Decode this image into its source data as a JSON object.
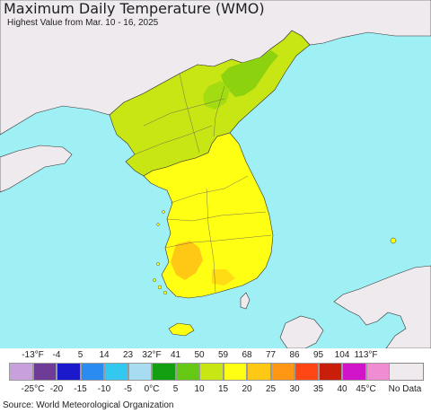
{
  "header": {
    "title": "Maximum Daily Temperature (WMO)",
    "subtitle": "Highest Value from Mar. 10 - 16, 2025"
  },
  "legend": {
    "fahrenheit_labels": [
      "-13°F",
      "-4",
      "5",
      "14",
      "23",
      "32°F",
      "41",
      "50",
      "59",
      "68",
      "77",
      "86",
      "95",
      "104",
      "113°F"
    ],
    "celsius_labels": [
      "-25°C",
      "-20",
      "-15",
      "-10",
      "-5",
      "0°C",
      "5",
      "10",
      "15",
      "20",
      "25",
      "30",
      "35",
      "40",
      "45°C"
    ],
    "colors": [
      "#c8a0dc",
      "#6e3c96",
      "#1a1acc",
      "#2a8cf0",
      "#32c8f0",
      "#a8dcf0",
      "#12a012",
      "#64c814",
      "#c8e614",
      "#ffff14",
      "#ffc814",
      "#ff9614",
      "#ff4614",
      "#c81e0a",
      "#d214c8",
      "#f08cd2"
    ],
    "no_data_label": "No Data",
    "no_data_color": "#eeeaee"
  },
  "source": "Source: World Meteorological Organization",
  "map_colors": {
    "sea": "#9ff0f4",
    "neutral_land": "#eeeaee",
    "north_korea": "#c8e614",
    "north_highland": "#8cd20e",
    "south_korea": "#ffff14",
    "southwest_warm": "#ffc814"
  }
}
